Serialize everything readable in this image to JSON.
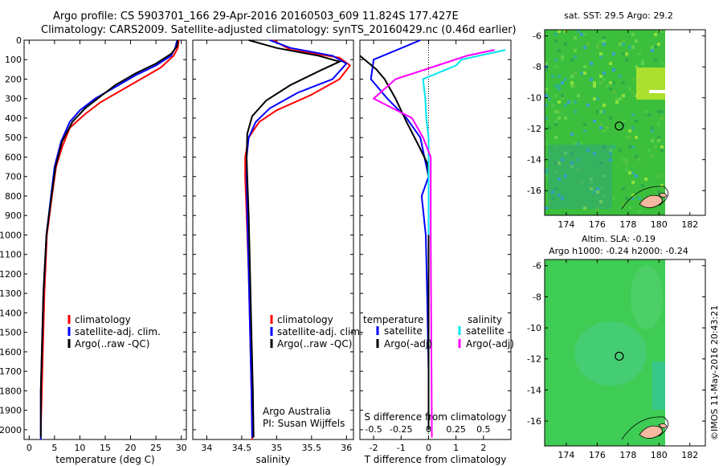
{
  "header": {
    "line1": "Argo profile: CS 5903701_166 29-Apr-2016 20160503_609 11.824S 177.427E",
    "line2": "Climatology: CARS2009. Satellite-adjusted climatology: synTS_20160429.nc (0.46d earlier)"
  },
  "colors": {
    "clim": "#ff0000",
    "sat": "#0000ff",
    "argo": "#000000",
    "sat_s": "#00e5ee",
    "argo_s": "#ff00ff",
    "land": "#f5b8a0"
  },
  "chart_data": [
    {
      "type": "line",
      "id": "temperature",
      "xlabel": "temperature (deg C)",
      "ylabel": "",
      "xlim": [
        -1,
        31
      ],
      "ylim": [
        2050,
        0
      ],
      "xticks": [
        0,
        5,
        10,
        15,
        20,
        25,
        30
      ],
      "yticks": [
        0,
        100,
        200,
        300,
        400,
        500,
        600,
        700,
        800,
        900,
        1000,
        1100,
        1200,
        1300,
        1400,
        1500,
        1600,
        1700,
        1800,
        1900,
        2000
      ],
      "legend": [
        "climatology",
        "satellite-adj. clim.",
        "Argo(..raw -QC)"
      ],
      "series": [
        {
          "name": "climatology",
          "color": "clim",
          "x": [
            29.5,
            29.3,
            28.5,
            26,
            22,
            18,
            14,
            11,
            8,
            6.5,
            5.3,
            4.5,
            3.5,
            3,
            2.5,
            2.3
          ],
          "y": [
            0,
            40,
            80,
            140,
            200,
            260,
            320,
            380,
            450,
            550,
            650,
            800,
            1000,
            1300,
            1800,
            2000
          ]
        },
        {
          "name": "satellite-adj. clim.",
          "color": "sat",
          "x": [
            29.2,
            28.8,
            28,
            25,
            21,
            17,
            13,
            10,
            8,
            6.3,
            5,
            4.3,
            3.4,
            2.8,
            2.3,
            2.3
          ],
          "y": [
            0,
            40,
            80,
            130,
            180,
            240,
            300,
            360,
            420,
            520,
            650,
            800,
            1000,
            1300,
            1800,
            2050
          ]
        },
        {
          "name": "Argo(..raw -QC)",
          "color": "argo",
          "x": [
            29.3,
            29.2,
            28,
            25,
            21,
            17,
            14,
            11,
            8.5,
            6.5,
            5.2,
            4.4,
            3.4,
            2.8,
            2.3,
            2.3
          ],
          "y": [
            0,
            30,
            70,
            120,
            170,
            230,
            290,
            350,
            420,
            520,
            650,
            800,
            1000,
            1300,
            1800,
            2040
          ]
        }
      ]
    },
    {
      "type": "line",
      "id": "salinity",
      "xlabel": "salinity",
      "ylabel": "",
      "xlim": [
        33.8,
        36.1
      ],
      "ylim": [
        2050,
        0
      ],
      "xticks": [
        34,
        34.5,
        35,
        35.5,
        36
      ],
      "xticklabels": [
        "34",
        "34.5",
        "35",
        "35.5",
        "36"
      ],
      "legend": [
        "climatology",
        "satellite-adj. clim.",
        "Argo(..raw -QC)"
      ],
      "annotations": [
        "Argo Australia",
        "PI: Susan Wijffels"
      ],
      "series": [
        {
          "name": "climatology",
          "color": "clim",
          "x": [
            34.95,
            35.2,
            35.9,
            36.05,
            35.9,
            35.5,
            35.0,
            34.75,
            34.6,
            34.55,
            34.55,
            34.57,
            34.6,
            34.62,
            34.64,
            34.65
          ],
          "y": [
            0,
            50,
            90,
            130,
            200,
            280,
            360,
            420,
            500,
            600,
            700,
            900,
            1200,
            1500,
            1800,
            2050
          ]
        },
        {
          "name": "satellite-adj. clim.",
          "color": "sat",
          "x": [
            34.9,
            35.2,
            35.8,
            36,
            35.8,
            35.3,
            34.9,
            34.7,
            34.6,
            34.57,
            34.57,
            34.58,
            34.6,
            34.62,
            34.64,
            34.65
          ],
          "y": [
            0,
            40,
            80,
            120,
            200,
            270,
            350,
            420,
            500,
            600,
            700,
            900,
            1200,
            1500,
            1800,
            2040
          ]
        },
        {
          "name": "Argo(..raw -QC)",
          "color": "argo",
          "x": [
            34.6,
            35.0,
            35.6,
            35.9,
            35.6,
            35.2,
            34.85,
            34.65,
            34.58,
            34.57,
            34.58,
            34.6,
            34.62,
            34.64,
            34.66,
            34.67
          ],
          "y": [
            0,
            40,
            80,
            110,
            160,
            230,
            310,
            390,
            480,
            600,
            700,
            900,
            1200,
            1500,
            1800,
            2040
          ]
        }
      ]
    },
    {
      "type": "line",
      "id": "difference",
      "xlabel": "T difference from climatology",
      "ylabel": "",
      "top_title": "S difference from climatology",
      "xlim": [
        -2.5,
        3
      ],
      "ylim": [
        2050,
        0
      ],
      "xticks": [
        -2,
        -1,
        0,
        1,
        2
      ],
      "top_xlim": [
        -0.625,
        0.75
      ],
      "top_xticks": [
        -0.5,
        -0.25,
        0,
        0.25,
        0.5
      ],
      "top_xticklabels": [
        "-0.5",
        "-0.25",
        "0",
        "0.25",
        "0.5"
      ],
      "legend_t_title": "temperature",
      "legend_s_title": "salinity",
      "legend": [
        "satellite",
        "Argo(-adj)",
        "satellite",
        "Argo(-adj)"
      ],
      "series": [
        {
          "name": "satellite",
          "color": "sat",
          "axis": "T",
          "x": [
            -0.3,
            -2,
            -2.1,
            -1.5,
            -0.8,
            -0.3,
            -0.15,
            0,
            -0.25,
            -0.1,
            -0.05,
            0,
            0
          ],
          "y": [
            0,
            100,
            200,
            300,
            400,
            500,
            600,
            700,
            800,
            1000,
            1300,
            1700,
            2000
          ]
        },
        {
          "name": "Argo(-adj)",
          "color": "argo",
          "axis": "T",
          "x": [
            -2.5,
            -1.9,
            -1.6,
            -1.2,
            -0.8,
            -0.4,
            -0.05,
            0,
            0,
            0
          ],
          "y": [
            80,
            150,
            200,
            300,
            420,
            530,
            630,
            700,
            1000,
            2000
          ]
        },
        {
          "name": "satellite",
          "color": "sat_s",
          "axis": "S",
          "x": [
            0.7,
            0.3,
            0.25,
            -0.05,
            -0.03,
            -0.02,
            0,
            0,
            0
          ],
          "y": [
            50,
            100,
            130,
            200,
            300,
            400,
            500,
            700,
            1000
          ]
        },
        {
          "name": "Argo(-adj)",
          "color": "argo_s",
          "axis": "S",
          "x": [
            0.6,
            0.35,
            0.08,
            -0.3,
            -0.5,
            -0.15,
            -0.05,
            0.02,
            0.02,
            0.03
          ],
          "y": [
            50,
            80,
            130,
            200,
            300,
            400,
            500,
            600,
            1000,
            2040
          ]
        }
      ]
    }
  ],
  "maps": [
    {
      "title": "sat. SST: 29.5 Argo: 29.2",
      "subtitle": "",
      "subtitle2": "",
      "xticks": [
        "174",
        "176",
        "178",
        "180",
        "182"
      ],
      "yticks": [
        "-6",
        "-8",
        "-10",
        "-12",
        "-14",
        "-16"
      ]
    },
    {
      "title": "Altim. SLA: -0.19",
      "subtitle": "Argo h1000: -0.24 h2000: -0.24",
      "subtitle2": "",
      "xticks": [
        "174",
        "176",
        "178",
        "180",
        "182"
      ],
      "yticks": [
        "-6",
        "-8",
        "-10",
        "-12",
        "-14",
        "-16"
      ]
    }
  ],
  "credit": "©IMOS 11-May-2016 20:43:21"
}
